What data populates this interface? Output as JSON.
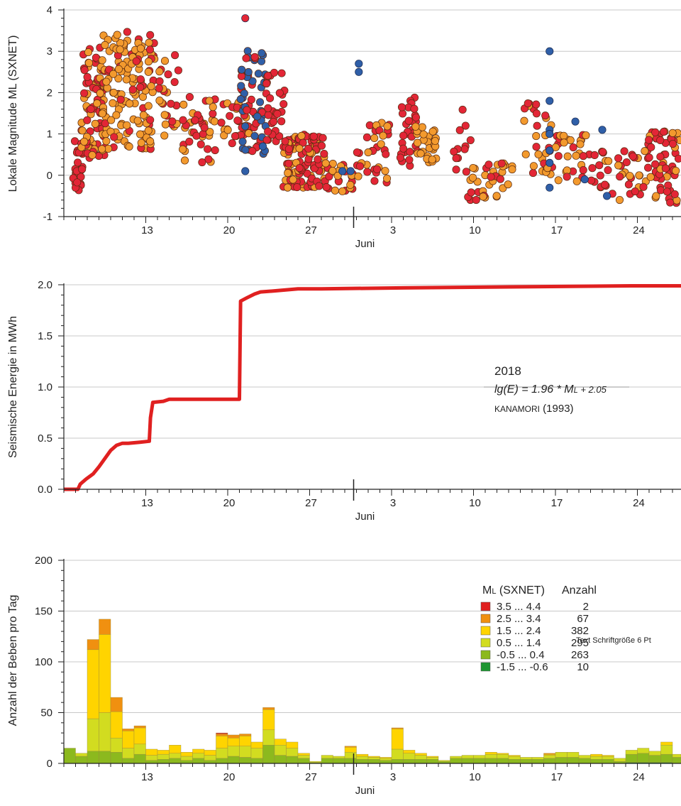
{
  "colors": {
    "red": "#e32636",
    "orange": "#f39a2e",
    "blue": "#2f5fa8",
    "energy": "#e02020",
    "grid": "#c8c8c8",
    "c1": "#e02020",
    "c2": "#f09010",
    "c3": "#ffd400",
    "c4": "#d2dc20",
    "c5": "#8cb91e",
    "c6": "#1e9632"
  },
  "x_axis": {
    "tick_labels": [
      "13",
      "20",
      "27",
      "3",
      "10",
      "17",
      "24"
    ],
    "month_label": "Juni"
  },
  "chart_data": [
    {
      "type": "scatter",
      "ylabel": "Lokale Magnitude ML (SXNET)",
      "ylim": [
        -1,
        4
      ],
      "ytick_labels": [
        "4",
        "3",
        "2",
        "1",
        "0",
        "-1"
      ],
      "grid": true,
      "clusters": [
        {
          "day": 7.2,
          "width": 0.8,
          "ymin": -0.5,
          "ymax": 1.0,
          "n": 25,
          "colors": [
            "red"
          ]
        },
        {
          "day": 8.5,
          "width": 2.0,
          "ymin": 0.4,
          "ymax": 3.1,
          "n": 90,
          "colors": [
            "red",
            "red",
            "orange"
          ]
        },
        {
          "day": 11.5,
          "width": 4.5,
          "ymin": 0.6,
          "ymax": 3.5,
          "n": 150,
          "colors": [
            "orange",
            "orange",
            "orange",
            "red"
          ]
        },
        {
          "day": 15.0,
          "width": 1.8,
          "ymin": 0.8,
          "ymax": 3.0,
          "n": 25,
          "colors": [
            "orange",
            "red"
          ]
        },
        {
          "day": 17.5,
          "width": 3.0,
          "ymin": 0.3,
          "ymax": 1.9,
          "n": 40,
          "colors": [
            "orange",
            "red"
          ]
        },
        {
          "day": 20.7,
          "width": 2.5,
          "ymin": 0.7,
          "ymax": 1.8,
          "n": 30,
          "colors": [
            "red",
            "orange"
          ]
        },
        {
          "day": 22.2,
          "width": 2.2,
          "ymin": 0.5,
          "ymax": 3.1,
          "n": 60,
          "colors": [
            "blue",
            "blue",
            "red"
          ]
        },
        {
          "day": 24.0,
          "width": 1.8,
          "ymin": 0.8,
          "ymax": 2.5,
          "n": 30,
          "colors": [
            "red"
          ]
        },
        {
          "day": 26.5,
          "width": 3.5,
          "ymin": -0.3,
          "ymax": 1.0,
          "n": 110,
          "colors": [
            "red",
            "red",
            "orange"
          ]
        },
        {
          "day": 29.5,
          "width": 2.5,
          "ymin": -0.4,
          "ymax": 0.3,
          "n": 30,
          "colors": [
            "red",
            "orange"
          ]
        },
        {
          "day": 32.5,
          "width": 3.0,
          "ymin": -0.2,
          "ymax": 1.3,
          "n": 35,
          "colors": [
            "red",
            "red",
            "orange"
          ]
        },
        {
          "day": 35.5,
          "width": 1.5,
          "ymin": 0.2,
          "ymax": 1.9,
          "n": 30,
          "colors": [
            "red"
          ]
        },
        {
          "day": 37.0,
          "width": 2.0,
          "ymin": 0.3,
          "ymax": 1.2,
          "n": 30,
          "colors": [
            "orange"
          ]
        },
        {
          "day": 40.0,
          "width": 1.5,
          "ymin": 0.0,
          "ymax": 1.6,
          "n": 12,
          "colors": [
            "red"
          ]
        },
        {
          "day": 42.5,
          "width": 4.0,
          "ymin": -0.6,
          "ymax": 0.3,
          "n": 35,
          "colors": [
            "red",
            "orange"
          ]
        },
        {
          "day": 46.5,
          "width": 2.5,
          "ymin": 0.0,
          "ymax": 1.8,
          "n": 30,
          "colors": [
            "red",
            "orange"
          ]
        },
        {
          "day": 49.5,
          "width": 3.0,
          "ymin": -0.2,
          "ymax": 1.0,
          "n": 30,
          "colors": [
            "red",
            "orange"
          ]
        },
        {
          "day": 53.0,
          "width": 4.5,
          "ymin": -0.6,
          "ymax": 0.6,
          "n": 40,
          "colors": [
            "red",
            "red",
            "orange"
          ]
        },
        {
          "day": 57.5,
          "width": 4.0,
          "ymin": -0.7,
          "ymax": 1.1,
          "n": 90,
          "colors": [
            "red",
            "red",
            "orange"
          ]
        }
      ],
      "special_points": [
        {
          "day": 21.5,
          "y": 3.8,
          "color": "red"
        },
        {
          "day": 21.5,
          "y": 0.1,
          "color": "blue"
        },
        {
          "day": 31.2,
          "y": 2.7,
          "color": "blue"
        },
        {
          "day": 31.2,
          "y": 2.5,
          "color": "blue"
        },
        {
          "day": 30.5,
          "y": 0.1,
          "color": "blue"
        },
        {
          "day": 47.5,
          "y": 3.0,
          "color": "blue"
        },
        {
          "day": 47.5,
          "y": 1.8,
          "color": "blue"
        },
        {
          "day": 47.5,
          "y": 1.1,
          "color": "blue"
        },
        {
          "day": 47.5,
          "y": 1.0,
          "color": "blue"
        },
        {
          "day": 47.5,
          "y": 0.6,
          "color": "blue"
        },
        {
          "day": 47.5,
          "y": 0.3,
          "color": "blue"
        },
        {
          "day": 47.5,
          "y": -0.3,
          "color": "blue"
        },
        {
          "day": 49.7,
          "y": 1.3,
          "color": "blue"
        },
        {
          "day": 52.0,
          "y": 1.1,
          "color": "blue"
        },
        {
          "day": 50.5,
          "y": -0.1,
          "color": "blue"
        },
        {
          "day": 52.4,
          "y": -0.5,
          "color": "blue"
        },
        {
          "day": 29.8,
          "y": 0.1,
          "color": "blue"
        },
        {
          "day": 23.0,
          "y": 0.7,
          "color": "blue"
        }
      ]
    },
    {
      "type": "line",
      "ylabel": "Seismische Energie in MWh",
      "ylim": [
        0,
        2.0
      ],
      "ytick_labels": [
        "2.0",
        "1.5",
        "1.0",
        "0.5",
        "0.0"
      ],
      "grid": true,
      "x": [
        6.0,
        7.2,
        7.4,
        7.9,
        8.5,
        9.0,
        9.5,
        10.0,
        10.5,
        11.0,
        11.5,
        12.5,
        13.3,
        13.4,
        13.6,
        14.5,
        15.0,
        21.0,
        21.1,
        21.6,
        22.3,
        22.8,
        24.0,
        26.0,
        28.0,
        35.0,
        45.0,
        55.0,
        59.0
      ],
      "y": [
        0.0,
        0.0,
        0.05,
        0.1,
        0.15,
        0.22,
        0.3,
        0.38,
        0.43,
        0.45,
        0.45,
        0.46,
        0.47,
        0.7,
        0.85,
        0.86,
        0.88,
        0.88,
        1.84,
        1.87,
        1.91,
        1.93,
        1.94,
        1.96,
        1.96,
        1.97,
        1.98,
        1.99,
        1.99
      ],
      "annotation": {
        "year": "2018",
        "formula_lhs": "lg(E) = 1.96 * M",
        "formula_sub": "L",
        "formula_rhs": " + 2.05",
        "citation_name": "KANAMORI",
        "citation_year": " (1993)"
      }
    },
    {
      "type": "bar",
      "stacked": true,
      "ylabel": "Anzahl der Beben pro Tag",
      "ylim": [
        0,
        200
      ],
      "ytick_labels": [
        "200",
        "150",
        "100",
        "50",
        "0"
      ],
      "grid": true,
      "legend_title_m": "M",
      "legend_title_sub": "L",
      "legend_title_rest": " (SXNET)",
      "legend_title_count": "Anzahl",
      "legend_position": "top-right",
      "series": [
        {
          "name": "3.5 ... 4.4",
          "count": "2",
          "color_key": "c1"
        },
        {
          "name": "2.5 ... 3.4",
          "count": "67",
          "color_key": "c2"
        },
        {
          "name": "1.5 ... 2.4",
          "count": "382",
          "color_key": "c3"
        },
        {
          "name": "0.5 ... 1.4",
          "count": "295",
          "color_key": "c4"
        },
        {
          "name": "-0.5 ... 0.4",
          "count": "263",
          "color_key": "c5"
        },
        {
          "name": "-1.5 ... -0.6",
          "count": "10",
          "color_key": "c6"
        }
      ],
      "days": [
        {
          "day": 6,
          "v": [
            0,
            0,
            0,
            0,
            15,
            0
          ]
        },
        {
          "day": 7,
          "v": [
            0,
            0,
            0,
            3,
            7,
            0
          ]
        },
        {
          "day": 8,
          "v": [
            0,
            10,
            68,
            32,
            12,
            0
          ]
        },
        {
          "day": 9,
          "v": [
            0,
            15,
            77,
            38,
            12,
            0
          ]
        },
        {
          "day": 10,
          "v": [
            0,
            14,
            26,
            14,
            11,
            0
          ]
        },
        {
          "day": 11,
          "v": [
            0,
            2,
            17,
            10,
            5,
            0
          ]
        },
        {
          "day": 12,
          "v": [
            0,
            2,
            16,
            10,
            9,
            0
          ]
        },
        {
          "day": 13,
          "v": [
            0,
            0,
            6,
            5,
            3,
            0
          ]
        },
        {
          "day": 14,
          "v": [
            0,
            0,
            4,
            5,
            4,
            0
          ]
        },
        {
          "day": 15,
          "v": [
            0,
            0,
            8,
            5,
            5,
            0
          ]
        },
        {
          "day": 16,
          "v": [
            0,
            0,
            4,
            4,
            3,
            0
          ]
        },
        {
          "day": 17,
          "v": [
            0,
            0,
            4,
            5,
            5,
            0
          ]
        },
        {
          "day": 18,
          "v": [
            0,
            0,
            5,
            5,
            3,
            0
          ]
        },
        {
          "day": 19,
          "v": [
            1,
            2,
            12,
            10,
            5,
            0
          ]
        },
        {
          "day": 20,
          "v": [
            0,
            3,
            8,
            10,
            7,
            0
          ]
        },
        {
          "day": 21,
          "v": [
            0,
            2,
            10,
            11,
            6,
            0
          ]
        },
        {
          "day": 22,
          "v": [
            0,
            0,
            6,
            10,
            5,
            0
          ]
        },
        {
          "day": 23,
          "v": [
            0,
            2,
            20,
            15,
            18,
            0
          ]
        },
        {
          "day": 24,
          "v": [
            0,
            0,
            6,
            10,
            8,
            0
          ]
        },
        {
          "day": 25,
          "v": [
            0,
            0,
            6,
            8,
            7,
            0
          ]
        },
        {
          "day": 26,
          "v": [
            0,
            0,
            2,
            3,
            5,
            0
          ]
        },
        {
          "day": 27,
          "v": [
            0,
            0,
            0,
            1,
            1,
            0
          ]
        },
        {
          "day": 28,
          "v": [
            0,
            0,
            0,
            3,
            5,
            0
          ]
        },
        {
          "day": 29,
          "v": [
            0,
            0,
            0,
            2,
            5,
            0
          ]
        },
        {
          "day": 30,
          "v": [
            0,
            1,
            5,
            6,
            5,
            0
          ]
        },
        {
          "day": 31,
          "v": [
            0,
            0,
            2,
            3,
            4,
            0
          ]
        },
        {
          "day": 32,
          "v": [
            0,
            0,
            1,
            2,
            4,
            0
          ]
        },
        {
          "day": 33,
          "v": [
            0,
            0,
            1,
            2,
            3,
            0
          ]
        },
        {
          "day": 34,
          "v": [
            0,
            1,
            20,
            10,
            4,
            0
          ]
        },
        {
          "day": 35,
          "v": [
            0,
            0,
            3,
            6,
            4,
            0
          ]
        },
        {
          "day": 36,
          "v": [
            0,
            0,
            2,
            4,
            4,
            0
          ]
        },
        {
          "day": 37,
          "v": [
            0,
            0,
            1,
            2,
            4,
            0
          ]
        },
        {
          "day": 38,
          "v": [
            0,
            0,
            0,
            1,
            2,
            0
          ]
        },
        {
          "day": 39,
          "v": [
            0,
            0,
            0,
            2,
            5,
            0
          ]
        },
        {
          "day": 40,
          "v": [
            0,
            0,
            0,
            3,
            5,
            0
          ]
        },
        {
          "day": 41,
          "v": [
            0,
            0,
            0,
            3,
            5,
            0
          ]
        },
        {
          "day": 42,
          "v": [
            0,
            0,
            2,
            4,
            5,
            0
          ]
        },
        {
          "day": 43,
          "v": [
            0,
            0,
            1,
            4,
            5,
            0
          ]
        },
        {
          "day": 44,
          "v": [
            0,
            0,
            1,
            3,
            4,
            0
          ]
        },
        {
          "day": 45,
          "v": [
            0,
            0,
            0,
            2,
            4,
            0
          ]
        },
        {
          "day": 46,
          "v": [
            0,
            0,
            0,
            2,
            4,
            0
          ]
        },
        {
          "day": 47,
          "v": [
            0,
            1,
            1,
            3,
            5,
            0
          ]
        },
        {
          "day": 48,
          "v": [
            0,
            0,
            0,
            5,
            6,
            0
          ]
        },
        {
          "day": 49,
          "v": [
            0,
            0,
            0,
            5,
            6,
            0
          ]
        },
        {
          "day": 50,
          "v": [
            0,
            0,
            0,
            3,
            5,
            0
          ]
        },
        {
          "day": 51,
          "v": [
            0,
            0,
            2,
            3,
            4,
            0
          ]
        },
        {
          "day": 52,
          "v": [
            0,
            0,
            1,
            3,
            4,
            0
          ]
        },
        {
          "day": 53,
          "v": [
            0,
            0,
            0,
            3,
            2,
            0
          ]
        },
        {
          "day": 54,
          "v": [
            0,
            0,
            0,
            4,
            8,
            1
          ]
        },
        {
          "day": 55,
          "v": [
            0,
            0,
            0,
            5,
            9,
            1
          ]
        },
        {
          "day": 56,
          "v": [
            0,
            0,
            0,
            4,
            7,
            1
          ]
        },
        {
          "day": 57,
          "v": [
            0,
            0,
            3,
            9,
            8,
            1
          ]
        },
        {
          "day": 58,
          "v": [
            0,
            0,
            0,
            3,
            6,
            0
          ]
        },
        {
          "day": 59,
          "v": [
            0,
            0,
            0,
            5,
            8,
            1
          ]
        }
      ]
    }
  ],
  "stray_text": "Text Schriftgröße 6 Pt"
}
